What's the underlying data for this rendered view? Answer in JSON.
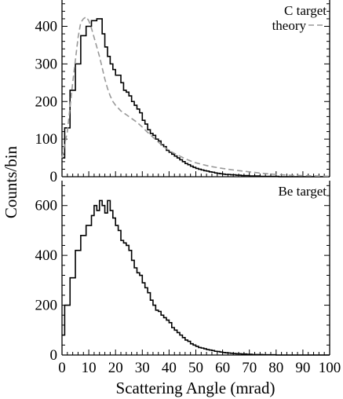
{
  "chart_data": [
    {
      "type": "line",
      "panel": "top",
      "ylabel": "Counts/bin",
      "xlim": [
        0,
        100
      ],
      "ylim": [
        0,
        470
      ],
      "yticks": [
        0,
        100,
        200,
        300,
        400
      ],
      "legend_placement": "top-right",
      "legend": [
        "C target",
        "theory"
      ],
      "bin_width": 1,
      "series": [
        {
          "name": "C target",
          "style": "step",
          "color": "#000000",
          "bin_edges_start": 0,
          "values": [
            50,
            130,
            130,
            230,
            230,
            300,
            300,
            375,
            375,
            400,
            400,
            415,
            415,
            420,
            420,
            380,
            345,
            320,
            300,
            285,
            270,
            270,
            250,
            230,
            225,
            215,
            200,
            190,
            180,
            170,
            150,
            140,
            125,
            115,
            110,
            100,
            95,
            85,
            80,
            70,
            65,
            60,
            55,
            50,
            45,
            40,
            35,
            32,
            28,
            25,
            22,
            20,
            18,
            16,
            15,
            13,
            12,
            10,
            9,
            8,
            7,
            6,
            6,
            5,
            5,
            4,
            4,
            3,
            3,
            3,
            2,
            2,
            2,
            2,
            1,
            1,
            1,
            1,
            1,
            1,
            1,
            0,
            0,
            0,
            0,
            0,
            0,
            0,
            0,
            0,
            0,
            0,
            0,
            0,
            0,
            0,
            0,
            0,
            0,
            0
          ]
        },
        {
          "name": "theory",
          "style": "dashed",
          "color": "#999999",
          "points": [
            [
              0,
              50
            ],
            [
              2,
              120
            ],
            [
              4,
              250
            ],
            [
              6,
              370
            ],
            [
              7,
              410
            ],
            [
              8,
              420
            ],
            [
              9,
              425
            ],
            [
              10,
              415
            ],
            [
              11,
              395
            ],
            [
              12,
              370
            ],
            [
              13,
              345
            ],
            [
              14,
              320
            ],
            [
              15,
              290
            ],
            [
              16,
              260
            ],
            [
              17,
              235
            ],
            [
              18,
              215
            ],
            [
              19,
              200
            ],
            [
              20,
              190
            ],
            [
              22,
              175
            ],
            [
              24,
              165
            ],
            [
              26,
              155
            ],
            [
              28,
              145
            ],
            [
              30,
              132
            ],
            [
              32,
              118
            ],
            [
              34,
              105
            ],
            [
              36,
              92
            ],
            [
              38,
              80
            ],
            [
              40,
              70
            ],
            [
              42,
              62
            ],
            [
              44,
              55
            ],
            [
              46,
              48
            ],
            [
              48,
              42
            ],
            [
              50,
              37
            ],
            [
              55,
              28
            ],
            [
              60,
              22
            ],
            [
              65,
              17
            ],
            [
              70,
              13
            ],
            [
              75,
              9
            ],
            [
              80,
              6
            ],
            [
              85,
              4
            ],
            [
              90,
              3
            ],
            [
              95,
              2
            ],
            [
              100,
              1
            ]
          ]
        }
      ]
    },
    {
      "type": "line",
      "panel": "bottom",
      "xlabel": "Scattering Angle (mrad)",
      "xlim": [
        0,
        100
      ],
      "xticks": [
        0,
        10,
        20,
        30,
        40,
        50,
        60,
        70,
        80,
        90,
        100
      ],
      "ylim": [
        0,
        700
      ],
      "yticks": [
        0,
        200,
        400,
        600
      ],
      "legend_placement": "top-right",
      "legend": [
        "Be target"
      ],
      "bin_width": 1,
      "series": [
        {
          "name": "Be target",
          "style": "step",
          "color": "#000000",
          "bin_edges_start": 0,
          "values": [
            80,
            200,
            200,
            310,
            310,
            420,
            420,
            480,
            480,
            520,
            520,
            560,
            600,
            580,
            620,
            600,
            570,
            620,
            580,
            550,
            520,
            500,
            460,
            450,
            440,
            420,
            380,
            350,
            330,
            320,
            290,
            270,
            250,
            220,
            200,
            180,
            175,
            160,
            150,
            140,
            130,
            110,
            100,
            90,
            80,
            70,
            60,
            55,
            45,
            40,
            35,
            30,
            28,
            25,
            22,
            20,
            18,
            15,
            14,
            12,
            10,
            9,
            8,
            7,
            6,
            5,
            5,
            4,
            4,
            3,
            3,
            2,
            2,
            2,
            2,
            1,
            1,
            1,
            1,
            1,
            0,
            0,
            0,
            0,
            0,
            0,
            0,
            0,
            0,
            0,
            0,
            0,
            0,
            0,
            0,
            0,
            0,
            0,
            0,
            0
          ]
        }
      ]
    }
  ]
}
